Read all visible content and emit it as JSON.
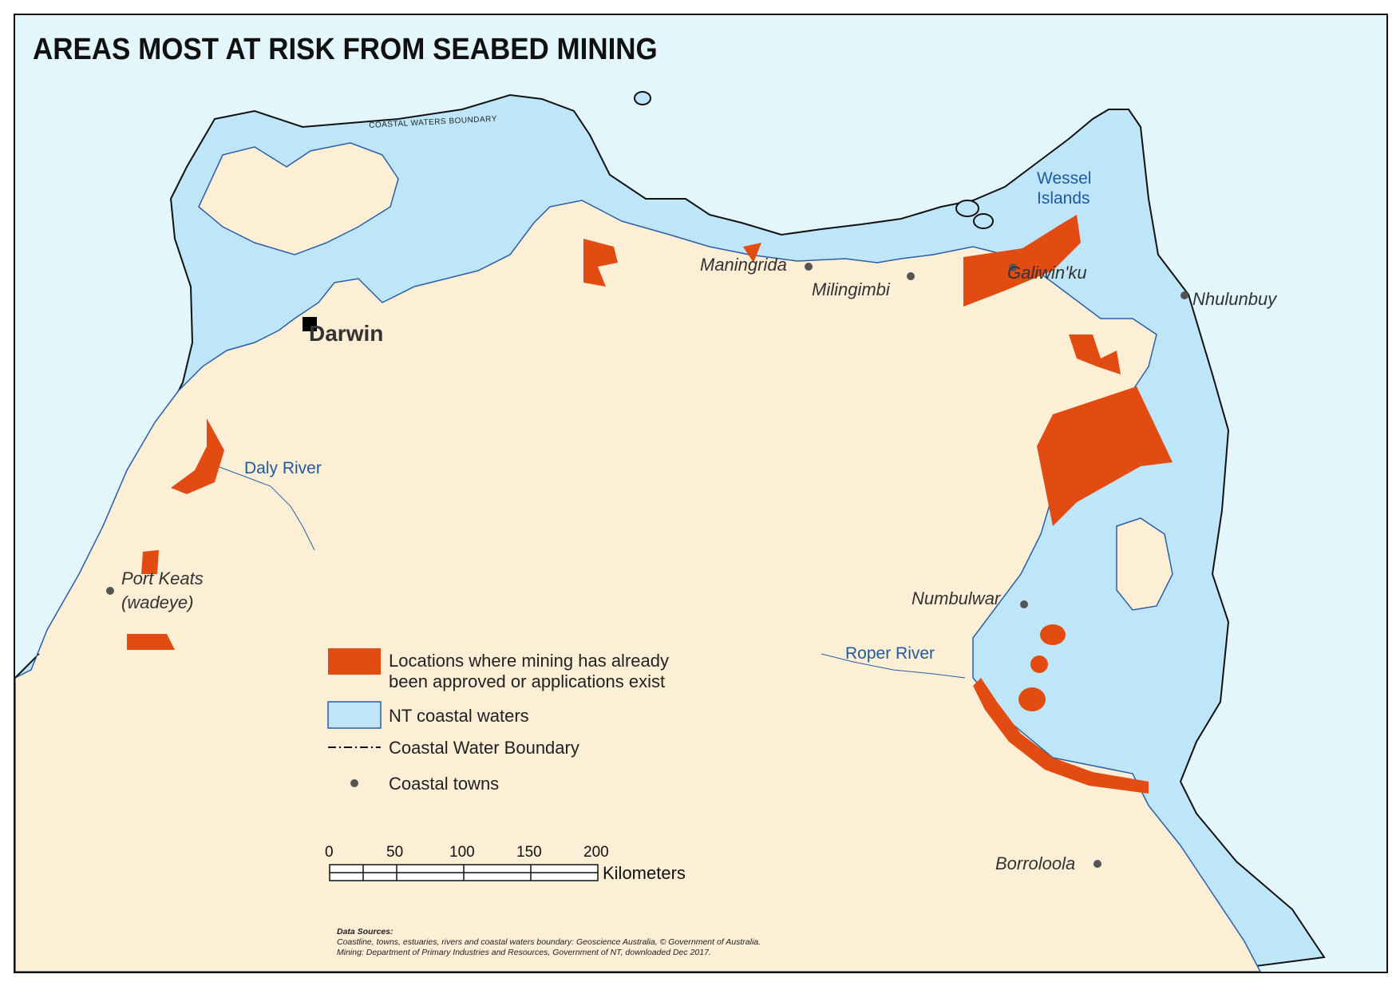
{
  "title": "AREAS MOST AT RISK FROM SEABED MINING",
  "boundary_label": "COASTAL WATERS BOUNDARY",
  "capital": "Darwin",
  "towns": [
    "Maningrida",
    "Milingimbi",
    "Galiwin'ku",
    "Nhulunbuy",
    "Numbulwar",
    "Borroloola",
    "Port Keats",
    "(wadeye)"
  ],
  "rivers": [
    "Daly River",
    "Roper River"
  ],
  "islands": [
    "Wessel",
    "Islands"
  ],
  "legend": {
    "mining_line1": "Locations where mining has already",
    "mining_line2": "been approved or applications exist",
    "coastal_waters": "NT coastal waters",
    "boundary": "Coastal Water Boundary",
    "towns": "Coastal towns"
  },
  "scale": {
    "ticks": [
      "0",
      "50",
      "100",
      "150",
      "200"
    ],
    "unit": "Kilometers"
  },
  "sources": {
    "heading": "Data Sources:",
    "line1": "Coastline, towns, estuaries, rivers and coastal waters boundary: Geoscience Australia,  © Government of Australia.",
    "line2": "Mining: Department of Primary Industries and Resources, Government of NT, downloaded Dec 2017."
  },
  "colors": {
    "ocean": "#e2f6fc",
    "land": "#fdeed6",
    "coastal_waters": "#bfe6f8",
    "mining": "#e24b12",
    "town_dot": "#555555",
    "river_text": "#1f5aa0"
  }
}
